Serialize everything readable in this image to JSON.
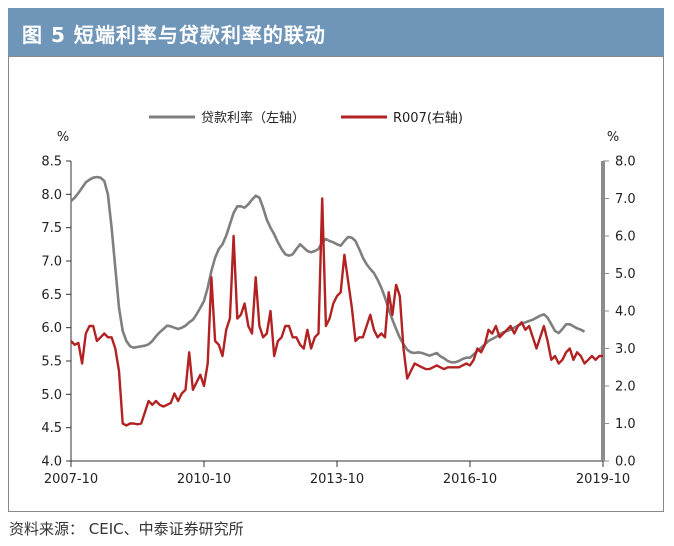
{
  "header": {
    "title": "图 5  短端利率与贷款利率的联动"
  },
  "footer": {
    "source": "资料来源：  CEIC、中泰证券研究所"
  },
  "colors": {
    "header_bg": "#6f95b8",
    "series_left": "#7f7f7f",
    "series_right": "#b22222",
    "right_axis": "#8c8c8c"
  },
  "chart_data": {
    "type": "line",
    "title": "",
    "left_axis": {
      "unit": "%",
      "ylim": [
        4.0,
        8.5
      ],
      "ticks": [
        "4.0",
        "4.5",
        "5.0",
        "5.5",
        "6.0",
        "6.5",
        "7.0",
        "7.5",
        "8.0",
        "8.5"
      ]
    },
    "right_axis": {
      "unit": "%",
      "ylim": [
        0.0,
        8.0
      ],
      "ticks": [
        "0.0",
        "1.0",
        "2.0",
        "3.0",
        "4.0",
        "5.0",
        "6.0",
        "7.0",
        "8.0"
      ]
    },
    "x_axis": {
      "ticks": [
        "2007-10",
        "2010-10",
        "2013-10",
        "2016-10",
        "2019-10"
      ],
      "range": [
        "2007-10",
        "2019-10"
      ]
    },
    "legend_position": "top-center",
    "grid": false,
    "series": [
      {
        "name": "贷款利率（左轴）",
        "axis": "left",
        "color": "#7f7f7f",
        "points": [
          [
            "2007-10",
            7.9
          ],
          [
            "2007-11",
            7.95
          ],
          [
            "2007-12",
            8.02
          ],
          [
            "2008-01",
            8.1
          ],
          [
            "2008-02",
            8.18
          ],
          [
            "2008-03",
            8.22
          ],
          [
            "2008-04",
            8.25
          ],
          [
            "2008-05",
            8.26
          ],
          [
            "2008-06",
            8.25
          ],
          [
            "2008-07",
            8.2
          ],
          [
            "2008-08",
            8.0
          ],
          [
            "2008-09",
            7.5
          ],
          [
            "2008-10",
            6.9
          ],
          [
            "2008-11",
            6.3
          ],
          [
            "2008-12",
            5.95
          ],
          [
            "2009-01",
            5.8
          ],
          [
            "2009-02",
            5.72
          ],
          [
            "2009-03",
            5.7
          ],
          [
            "2009-04",
            5.71
          ],
          [
            "2009-05",
            5.72
          ],
          [
            "2009-06",
            5.73
          ],
          [
            "2009-07",
            5.75
          ],
          [
            "2009-08",
            5.8
          ],
          [
            "2009-09",
            5.87
          ],
          [
            "2009-10",
            5.93
          ],
          [
            "2009-11",
            5.98
          ],
          [
            "2009-12",
            6.03
          ],
          [
            "2010-01",
            6.02
          ],
          [
            "2010-02",
            6.0
          ],
          [
            "2010-03",
            5.98
          ],
          [
            "2010-04",
            6.0
          ],
          [
            "2010-05",
            6.03
          ],
          [
            "2010-06",
            6.08
          ],
          [
            "2010-07",
            6.12
          ],
          [
            "2010-08",
            6.2
          ],
          [
            "2010-09",
            6.3
          ],
          [
            "2010-10",
            6.4
          ],
          [
            "2010-11",
            6.6
          ],
          [
            "2010-12",
            6.85
          ],
          [
            "2011-01",
            7.05
          ],
          [
            "2011-02",
            7.18
          ],
          [
            "2011-03",
            7.25
          ],
          [
            "2011-04",
            7.38
          ],
          [
            "2011-05",
            7.55
          ],
          [
            "2011-06",
            7.72
          ],
          [
            "2011-07",
            7.82
          ],
          [
            "2011-08",
            7.82
          ],
          [
            "2011-09",
            7.8
          ],
          [
            "2011-10",
            7.85
          ],
          [
            "2011-11",
            7.92
          ],
          [
            "2011-12",
            7.98
          ],
          [
            "2012-01",
            7.95
          ],
          [
            "2012-02",
            7.8
          ],
          [
            "2012-03",
            7.62
          ],
          [
            "2012-04",
            7.5
          ],
          [
            "2012-05",
            7.4
          ],
          [
            "2012-06",
            7.28
          ],
          [
            "2012-07",
            7.18
          ],
          [
            "2012-08",
            7.1
          ],
          [
            "2012-09",
            7.08
          ],
          [
            "2012-10",
            7.1
          ],
          [
            "2012-11",
            7.18
          ],
          [
            "2012-12",
            7.25
          ],
          [
            "2013-01",
            7.2
          ],
          [
            "2013-02",
            7.15
          ],
          [
            "2013-03",
            7.13
          ],
          [
            "2013-04",
            7.15
          ],
          [
            "2013-05",
            7.18
          ],
          [
            "2013-06",
            7.28
          ],
          [
            "2013-07",
            7.33
          ],
          [
            "2013-08",
            7.3
          ],
          [
            "2013-09",
            7.28
          ],
          [
            "2013-10",
            7.25
          ],
          [
            "2013-11",
            7.23
          ],
          [
            "2013-12",
            7.3
          ],
          [
            "2014-01",
            7.36
          ],
          [
            "2014-02",
            7.35
          ],
          [
            "2014-03",
            7.3
          ],
          [
            "2014-04",
            7.18
          ],
          [
            "2014-05",
            7.05
          ],
          [
            "2014-06",
            6.95
          ],
          [
            "2014-07",
            6.88
          ],
          [
            "2014-08",
            6.82
          ],
          [
            "2014-09",
            6.72
          ],
          [
            "2014-10",
            6.6
          ],
          [
            "2014-11",
            6.45
          ],
          [
            "2014-12",
            6.28
          ],
          [
            "2015-01",
            6.12
          ],
          [
            "2015-02",
            5.98
          ],
          [
            "2015-03",
            5.85
          ],
          [
            "2015-04",
            5.75
          ],
          [
            "2015-05",
            5.67
          ],
          [
            "2015-06",
            5.63
          ],
          [
            "2015-07",
            5.62
          ],
          [
            "2015-08",
            5.63
          ],
          [
            "2015-09",
            5.62
          ],
          [
            "2015-10",
            5.6
          ],
          [
            "2015-11",
            5.58
          ],
          [
            "2015-12",
            5.6
          ],
          [
            "2016-01",
            5.62
          ],
          [
            "2016-02",
            5.57
          ],
          [
            "2016-03",
            5.54
          ],
          [
            "2016-04",
            5.5
          ],
          [
            "2016-05",
            5.48
          ],
          [
            "2016-06",
            5.48
          ],
          [
            "2016-07",
            5.5
          ],
          [
            "2016-08",
            5.53
          ],
          [
            "2016-09",
            5.55
          ],
          [
            "2016-10",
            5.55
          ],
          [
            "2016-11",
            5.6
          ],
          [
            "2016-12",
            5.65
          ],
          [
            "2017-01",
            5.7
          ],
          [
            "2017-02",
            5.75
          ],
          [
            "2017-03",
            5.8
          ],
          [
            "2017-04",
            5.83
          ],
          [
            "2017-05",
            5.86
          ],
          [
            "2017-06",
            5.9
          ],
          [
            "2017-07",
            5.93
          ],
          [
            "2017-08",
            5.95
          ],
          [
            "2017-09",
            5.97
          ],
          [
            "2017-10",
            6.0
          ],
          [
            "2017-11",
            6.03
          ],
          [
            "2017-12",
            6.06
          ],
          [
            "2018-01",
            6.08
          ],
          [
            "2018-02",
            6.1
          ],
          [
            "2018-03",
            6.12
          ],
          [
            "2018-04",
            6.15
          ],
          [
            "2018-05",
            6.18
          ],
          [
            "2018-06",
            6.2
          ],
          [
            "2018-07",
            6.15
          ],
          [
            "2018-08",
            6.05
          ],
          [
            "2018-09",
            5.95
          ],
          [
            "2018-10",
            5.92
          ],
          [
            "2018-11",
            5.98
          ],
          [
            "2018-12",
            6.05
          ],
          [
            "2019-01",
            6.05
          ],
          [
            "2019-02",
            6.02
          ],
          [
            "2019-03",
            5.99
          ],
          [
            "2019-04",
            5.97
          ],
          [
            "2019-05",
            5.94
          ]
        ]
      },
      {
        "name": "R007(右轴)",
        "axis": "right",
        "color": "#b22222",
        "points": [
          [
            "2007-10",
            3.2
          ],
          [
            "2007-11",
            3.1
          ],
          [
            "2007-12",
            3.15
          ],
          [
            "2008-01",
            2.6
          ],
          [
            "2008-02",
            3.4
          ],
          [
            "2008-03",
            3.6
          ],
          [
            "2008-04",
            3.6
          ],
          [
            "2008-05",
            3.2
          ],
          [
            "2008-06",
            3.3
          ],
          [
            "2008-07",
            3.4
          ],
          [
            "2008-08",
            3.3
          ],
          [
            "2008-09",
            3.3
          ],
          [
            "2008-10",
            3.0
          ],
          [
            "2008-11",
            2.4
          ],
          [
            "2008-12",
            1.0
          ],
          [
            "2009-01",
            0.95
          ],
          [
            "2009-02",
            1.0
          ],
          [
            "2009-03",
            1.0
          ],
          [
            "2009-04",
            0.98
          ],
          [
            "2009-05",
            1.0
          ],
          [
            "2009-06",
            1.3
          ],
          [
            "2009-07",
            1.6
          ],
          [
            "2009-08",
            1.5
          ],
          [
            "2009-09",
            1.6
          ],
          [
            "2009-10",
            1.5
          ],
          [
            "2009-11",
            1.45
          ],
          [
            "2009-12",
            1.5
          ],
          [
            "2010-01",
            1.55
          ],
          [
            "2010-02",
            1.8
          ],
          [
            "2010-03",
            1.6
          ],
          [
            "2010-04",
            1.8
          ],
          [
            "2010-05",
            1.9
          ],
          [
            "2010-06",
            2.9
          ],
          [
            "2010-07",
            1.9
          ],
          [
            "2010-08",
            2.1
          ],
          [
            "2010-09",
            2.3
          ],
          [
            "2010-10",
            2.0
          ],
          [
            "2010-11",
            2.6
          ],
          [
            "2010-12",
            4.9
          ],
          [
            "2011-01",
            3.2
          ],
          [
            "2011-02",
            3.1
          ],
          [
            "2011-03",
            2.8
          ],
          [
            "2011-04",
            3.5
          ],
          [
            "2011-05",
            3.8
          ],
          [
            "2011-06",
            6.0
          ],
          [
            "2011-07",
            3.8
          ],
          [
            "2011-08",
            3.9
          ],
          [
            "2011-09",
            4.2
          ],
          [
            "2011-10",
            3.6
          ],
          [
            "2011-11",
            3.4
          ],
          [
            "2011-12",
            4.9
          ],
          [
            "2012-01",
            3.6
          ],
          [
            "2012-02",
            3.3
          ],
          [
            "2012-03",
            3.4
          ],
          [
            "2012-04",
            4.0
          ],
          [
            "2012-05",
            2.8
          ],
          [
            "2012-06",
            3.2
          ],
          [
            "2012-07",
            3.3
          ],
          [
            "2012-08",
            3.6
          ],
          [
            "2012-09",
            3.6
          ],
          [
            "2012-10",
            3.3
          ],
          [
            "2012-11",
            3.3
          ],
          [
            "2012-12",
            3.1
          ],
          [
            "2013-01",
            3.0
          ],
          [
            "2013-02",
            3.5
          ],
          [
            "2013-03",
            3.0
          ],
          [
            "2013-04",
            3.3
          ],
          [
            "2013-05",
            3.4
          ],
          [
            "2013-06",
            7.0
          ],
          [
            "2013-07",
            3.6
          ],
          [
            "2013-08",
            3.8
          ],
          [
            "2013-09",
            4.2
          ],
          [
            "2013-10",
            4.4
          ],
          [
            "2013-11",
            4.5
          ],
          [
            "2013-12",
            5.5
          ],
          [
            "2014-01",
            4.8
          ],
          [
            "2014-02",
            4.1
          ],
          [
            "2014-03",
            3.2
          ],
          [
            "2014-04",
            3.3
          ],
          [
            "2014-05",
            3.3
          ],
          [
            "2014-06",
            3.6
          ],
          [
            "2014-07",
            3.9
          ],
          [
            "2014-08",
            3.5
          ],
          [
            "2014-09",
            3.3
          ],
          [
            "2014-10",
            3.4
          ],
          [
            "2014-11",
            3.3
          ],
          [
            "2014-12",
            4.5
          ],
          [
            "2015-01",
            3.9
          ],
          [
            "2015-02",
            4.7
          ],
          [
            "2015-03",
            4.4
          ],
          [
            "2015-04",
            3.0
          ],
          [
            "2015-05",
            2.2
          ],
          [
            "2015-06",
            2.4
          ],
          [
            "2015-07",
            2.6
          ],
          [
            "2015-08",
            2.55
          ],
          [
            "2015-09",
            2.5
          ],
          [
            "2015-10",
            2.45
          ],
          [
            "2015-11",
            2.45
          ],
          [
            "2015-12",
            2.5
          ],
          [
            "2016-01",
            2.55
          ],
          [
            "2016-02",
            2.5
          ],
          [
            "2016-03",
            2.45
          ],
          [
            "2016-04",
            2.5
          ],
          [
            "2016-05",
            2.5
          ],
          [
            "2016-06",
            2.5
          ],
          [
            "2016-07",
            2.5
          ],
          [
            "2016-08",
            2.55
          ],
          [
            "2016-09",
            2.6
          ],
          [
            "2016-10",
            2.55
          ],
          [
            "2016-11",
            2.7
          ],
          [
            "2016-12",
            3.0
          ],
          [
            "2017-01",
            2.9
          ],
          [
            "2017-02",
            3.1
          ],
          [
            "2017-03",
            3.5
          ],
          [
            "2017-04",
            3.4
          ],
          [
            "2017-05",
            3.6
          ],
          [
            "2017-06",
            3.3
          ],
          [
            "2017-07",
            3.4
          ],
          [
            "2017-08",
            3.5
          ],
          [
            "2017-09",
            3.6
          ],
          [
            "2017-10",
            3.4
          ],
          [
            "2017-11",
            3.6
          ],
          [
            "2017-12",
            3.7
          ],
          [
            "2018-01",
            3.5
          ],
          [
            "2018-02",
            3.6
          ],
          [
            "2018-03",
            3.3
          ],
          [
            "2018-04",
            3.0
          ],
          [
            "2018-05",
            3.3
          ],
          [
            "2018-06",
            3.6
          ],
          [
            "2018-07",
            3.2
          ],
          [
            "2018-08",
            2.7
          ],
          [
            "2018-09",
            2.8
          ],
          [
            "2018-10",
            2.6
          ],
          [
            "2018-11",
            2.7
          ],
          [
            "2018-12",
            2.9
          ],
          [
            "2019-01",
            3.0
          ],
          [
            "2019-02",
            2.7
          ],
          [
            "2019-03",
            2.9
          ],
          [
            "2019-04",
            2.8
          ],
          [
            "2019-05",
            2.6
          ],
          [
            "2019-06",
            2.7
          ],
          [
            "2019-07",
            2.8
          ],
          [
            "2019-08",
            2.7
          ],
          [
            "2019-09",
            2.8
          ],
          [
            "2019-10",
            2.8
          ]
        ]
      }
    ]
  }
}
